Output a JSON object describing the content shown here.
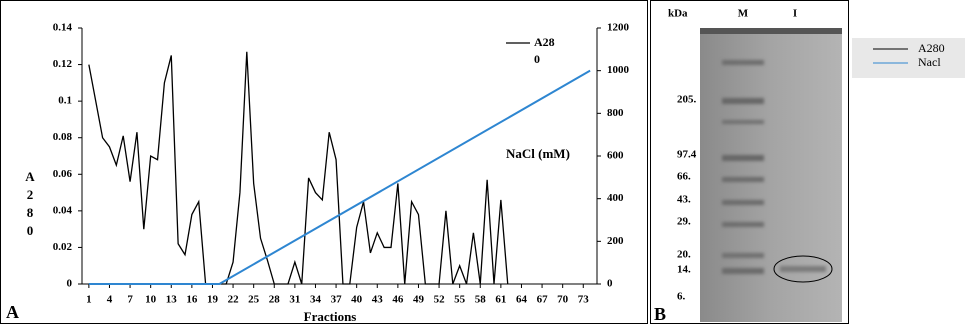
{
  "chart_data": {
    "type": "line",
    "xlabel": "Fractions",
    "ylabel": "A280",
    "y2label": "NaCl (mM)",
    "panel": "A",
    "xlim": [
      0,
      75
    ],
    "xticks": [
      1,
      4,
      7,
      10,
      13,
      16,
      19,
      22,
      25,
      28,
      31,
      34,
      37,
      40,
      43,
      46,
      49,
      52,
      55,
      58,
      61,
      64,
      67,
      70,
      73
    ],
    "ylim": [
      0,
      0.14
    ],
    "yticks": [
      0,
      0.02,
      0.04,
      0.06,
      0.08,
      0.1,
      0.12,
      0.14
    ],
    "y2lim": [
      0,
      1200
    ],
    "y2ticks": [
      0,
      200,
      400,
      600,
      800,
      1000,
      1200
    ],
    "series": [
      {
        "name": "A280",
        "color": "#000000",
        "x": [
          1,
          2,
          3,
          4,
          5,
          6,
          7,
          8,
          9,
          10,
          11,
          12,
          13,
          14,
          15,
          16,
          17,
          18,
          19,
          20,
          21,
          22,
          23,
          24,
          25,
          26,
          27,
          28,
          29,
          30,
          31,
          32,
          33,
          34,
          35,
          36,
          37,
          38,
          39,
          40,
          41,
          42,
          43,
          44,
          45,
          46,
          47,
          48,
          49,
          50,
          51,
          52,
          53,
          54,
          55,
          56,
          57,
          58,
          59,
          60,
          61,
          62
        ],
        "values": [
          0.12,
          0.1,
          0.08,
          0.075,
          0.065,
          0.081,
          0.056,
          0.083,
          0.03,
          0.07,
          0.068,
          0.11,
          0.125,
          0.022,
          0.016,
          0.038,
          0.045,
          0,
          0,
          0,
          0,
          0.012,
          0.05,
          0.127,
          0.055,
          0.025,
          0.013,
          0,
          0,
          0,
          0.012,
          0,
          0.058,
          0.05,
          0.046,
          0.083,
          0.068,
          0,
          0,
          0.031,
          0.045,
          0.017,
          0.028,
          0.02,
          0.02,
          0.055,
          0,
          0.045,
          0.038,
          0,
          0,
          0,
          0.04,
          0,
          0.01,
          0,
          0.028,
          0,
          0.057,
          0,
          0.046,
          0
        ]
      },
      {
        "color": "#2e86d1",
        "axis": "y2",
        "x": [
          1,
          20,
          74
        ],
        "values": [
          0,
          0,
          1000
        ]
      }
    ]
  },
  "gel": {
    "panel": "B",
    "unit": "kDa",
    "lanes": [
      "M",
      "I"
    ],
    "markers": [
      "205.",
      "97.4",
      "66.",
      "43.",
      "29.",
      "20.",
      "14.",
      "6."
    ]
  },
  "legend_b": [
    {
      "label": "A280",
      "color": "#000000"
    },
    {
      "label": "Nacl",
      "color": "#2e86d1"
    }
  ]
}
